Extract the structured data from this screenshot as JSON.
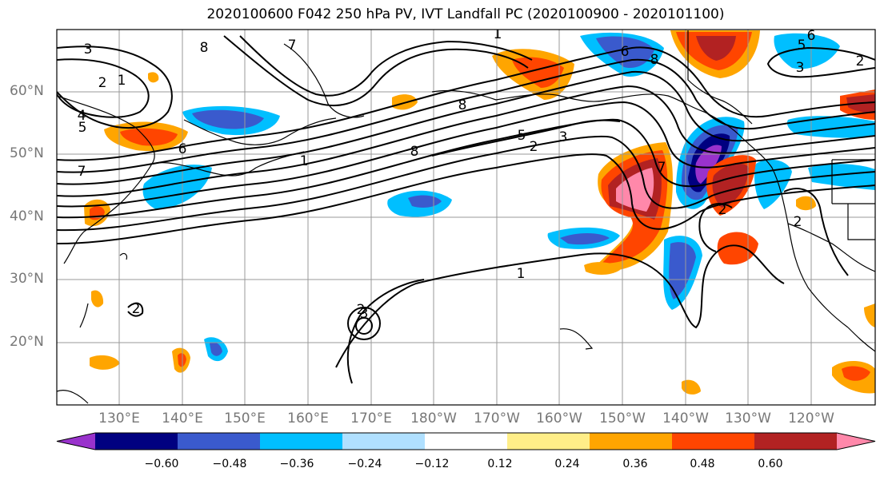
{
  "title": "2020100600 F042 250 hPa PV, IVT Landfall PC (2020100900 - 2020101100)",
  "lat_labels": [
    "60°N",
    "50°N",
    "40°N",
    "30°N",
    "20°N"
  ],
  "lon_labels": [
    "130°E",
    "140°E",
    "150°E",
    "160°E",
    "170°E",
    "180°W",
    "170°W",
    "160°W",
    "150°W",
    "140°W",
    "130°W",
    "120°W"
  ],
  "contour_labels": [
    "3",
    "2",
    "1",
    "8",
    "7",
    "4",
    "5",
    "6",
    "8",
    "7",
    "1",
    "2",
    "3",
    "5",
    "8",
    "6",
    "8",
    "7",
    "6",
    "5",
    "2",
    "2",
    "1",
    "3",
    "2",
    "3",
    "1",
    "2",
    "2"
  ],
  "colorbar": {
    "ticks": [
      "−0.60",
      "−0.48",
      "−0.36",
      "−0.24",
      "−0.12",
      "0.12",
      "0.24",
      "0.36",
      "0.48",
      "0.60"
    ],
    "colors": [
      "#9932cc",
      "#000080",
      "#3a5acd",
      "#00bfff",
      "#b0e0ff",
      "#ffffff",
      "#ffee88",
      "#ffa500",
      "#ff4500",
      "#b22222",
      "#ff88aa"
    ]
  }
}
